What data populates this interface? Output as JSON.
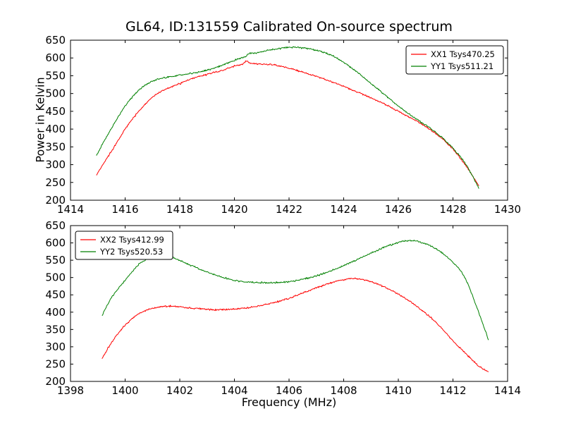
{
  "chart_data": [
    {
      "type": "line",
      "subplot": "top",
      "title": "GL64, ID:131559 Calibrated On-source spectrum",
      "ylabel": "Power in Kelvin",
      "xlim": [
        1414,
        1430
      ],
      "ylim": [
        200,
        650
      ],
      "xticks": [
        1414,
        1416,
        1418,
        1420,
        1422,
        1424,
        1426,
        1428,
        1430
      ],
      "yticks": [
        200,
        250,
        300,
        350,
        400,
        450,
        500,
        550,
        600,
        650
      ],
      "grid": false,
      "legend_position": "upper-right",
      "series": [
        {
          "name": "XX1 Tsys470.25",
          "color": "#ff0000",
          "x": [
            1414.95,
            1415.2,
            1415.5,
            1416,
            1416.5,
            1417,
            1417.5,
            1418,
            1418.5,
            1419,
            1419.5,
            1420,
            1420.3,
            1420.45,
            1420.55,
            1420.7,
            1421,
            1421.5,
            1422,
            1422.5,
            1423,
            1423.5,
            1424,
            1424.5,
            1425,
            1425.5,
            1426,
            1426.5,
            1427,
            1427.5,
            1428,
            1428.5,
            1428.95
          ],
          "y": [
            270,
            302,
            338,
            400,
            450,
            490,
            512,
            528,
            543,
            554,
            564,
            577,
            583,
            592,
            586,
            584,
            583,
            580,
            571,
            560,
            548,
            535,
            520,
            504,
            488,
            470,
            450,
            430,
            407,
            380,
            344,
            294,
            240
          ]
        },
        {
          "name": "YY1 Tsys511.21",
          "color": "#008000",
          "x": [
            1414.95,
            1415.2,
            1415.5,
            1416,
            1416.5,
            1417,
            1417.5,
            1418,
            1418.5,
            1419,
            1419.5,
            1420,
            1420.4,
            1420.55,
            1420.8,
            1421,
            1421.5,
            1422,
            1422.4,
            1422.8,
            1423.2,
            1423.6,
            1424,
            1424.5,
            1425,
            1425.5,
            1426,
            1426.5,
            1427,
            1427.5,
            1428,
            1428.5,
            1428.95
          ],
          "y": [
            325,
            362,
            402,
            465,
            510,
            535,
            545,
            552,
            558,
            566,
            578,
            593,
            604,
            613,
            614,
            618,
            625,
            630,
            629,
            625,
            617,
            606,
            588,
            560,
            528,
            497,
            465,
            437,
            411,
            383,
            346,
            297,
            233
          ]
        }
      ]
    },
    {
      "type": "line",
      "subplot": "bottom",
      "xlabel": "Frequency (MHz)",
      "xlim": [
        1398,
        1414
      ],
      "ylim": [
        200,
        650
      ],
      "xticks": [
        1398,
        1400,
        1402,
        1404,
        1406,
        1408,
        1410,
        1412,
        1414
      ],
      "yticks": [
        200,
        250,
        300,
        350,
        400,
        450,
        500,
        550,
        600,
        650
      ],
      "grid": false,
      "legend_position": "upper-left",
      "series": [
        {
          "name": "XX2 Tsys412.99",
          "color": "#ff0000",
          "x": [
            1399.15,
            1399.5,
            1400,
            1400.5,
            1401,
            1401.5,
            1402,
            1402.5,
            1403,
            1403.5,
            1404,
            1404.5,
            1405,
            1405.5,
            1406,
            1406.5,
            1407,
            1407.5,
            1408,
            1408.3,
            1408.6,
            1409,
            1409.5,
            1410,
            1410.5,
            1411,
            1411.5,
            1412,
            1412.5,
            1413,
            1413.3
          ],
          "y": [
            265,
            312,
            362,
            395,
            411,
            417,
            415,
            411,
            408,
            407,
            409,
            413,
            420,
            429,
            440,
            455,
            470,
            484,
            494,
            497,
            495,
            488,
            472,
            452,
            427,
            397,
            361,
            317,
            278,
            241,
            228
          ]
        },
        {
          "name": "YY2 Tsys520.53",
          "color": "#008000",
          "x": [
            1399.15,
            1399.5,
            1400,
            1400.5,
            1400.8,
            1401,
            1401.3,
            1401.6,
            1402,
            1402.5,
            1403,
            1403.5,
            1404,
            1404.5,
            1405,
            1405.5,
            1406,
            1406.5,
            1407,
            1407.5,
            1408,
            1408.5,
            1409,
            1409.5,
            1410,
            1410.3,
            1410.6,
            1411,
            1411.5,
            1412,
            1412.4,
            1412.8,
            1413.3
          ],
          "y": [
            390,
            442,
            492,
            538,
            554,
            561,
            565,
            562,
            549,
            532,
            516,
            502,
            492,
            487,
            485,
            485,
            488,
            495,
            505,
            518,
            535,
            552,
            570,
            588,
            601,
            606,
            606,
            597,
            577,
            544,
            505,
            430,
            320
          ]
        }
      ]
    }
  ],
  "style": {
    "axes_color": "#000000",
    "background": "#ffffff",
    "series_red": "#ff0000",
    "series_green": "#008000"
  }
}
